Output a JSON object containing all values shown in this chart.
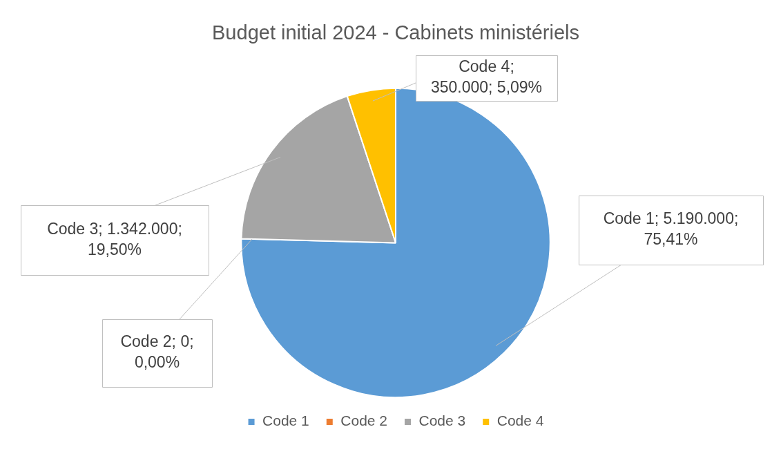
{
  "chart_data": {
    "type": "pie",
    "title": "Budget initial 2024 - Cabinets ministériels",
    "categories": [
      "Code 1",
      "Code 2",
      "Code 3",
      "Code 4"
    ],
    "values": [
      5190000,
      0,
      1342000,
      350000
    ],
    "colors": [
      "#5b9bd5",
      "#ed7d31",
      "#a5a5a5",
      "#ffc000"
    ],
    "value_labels": [
      "Code 1; 5.190.000; 75,41%",
      "Code 2; 0; 0,00%",
      "Code 3; 1.342.000; 19,50%",
      "Code 4; 350.000; 5,09%"
    ],
    "legend": "bottom"
  }
}
